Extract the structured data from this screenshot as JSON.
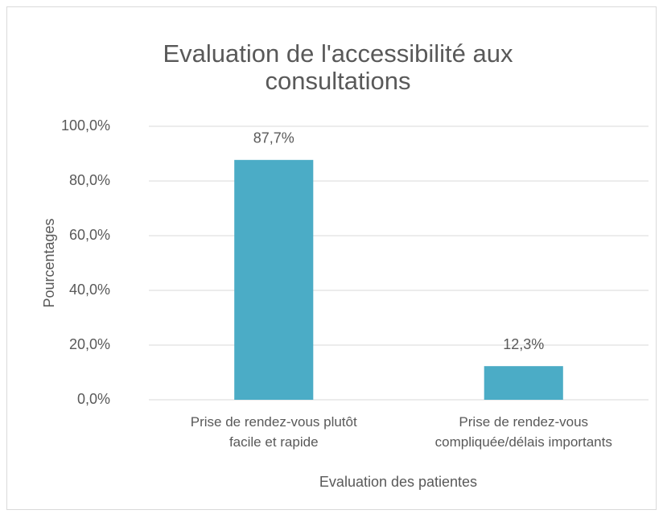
{
  "chart_data": {
    "type": "bar",
    "title": "Evaluation de l'accessibilité aux\nconsultations",
    "y_label": "Pourcentages",
    "x_label": "Evaluation des patientes",
    "categories": [
      "Prise de rendez-vous plutôt\nfacile et rapide",
      "Prise de rendez-vous\ncompliquée/délais importants"
    ],
    "values": [
      87.7,
      12.3
    ],
    "value_labels": [
      "87,7%",
      "12,3%"
    ],
    "color": "#4bacc6",
    "ylim": [
      0,
      100
    ],
    "yticks": [
      {
        "value": 0,
        "label": "0,0%"
      },
      {
        "value": 20,
        "label": "20,0%"
      },
      {
        "value": 40,
        "label": "40,0%"
      },
      {
        "value": 60,
        "label": "60,0%"
      },
      {
        "value": 80,
        "label": "80,0%"
      },
      {
        "value": 100,
        "label": "100,0%"
      }
    ],
    "grid": true
  }
}
